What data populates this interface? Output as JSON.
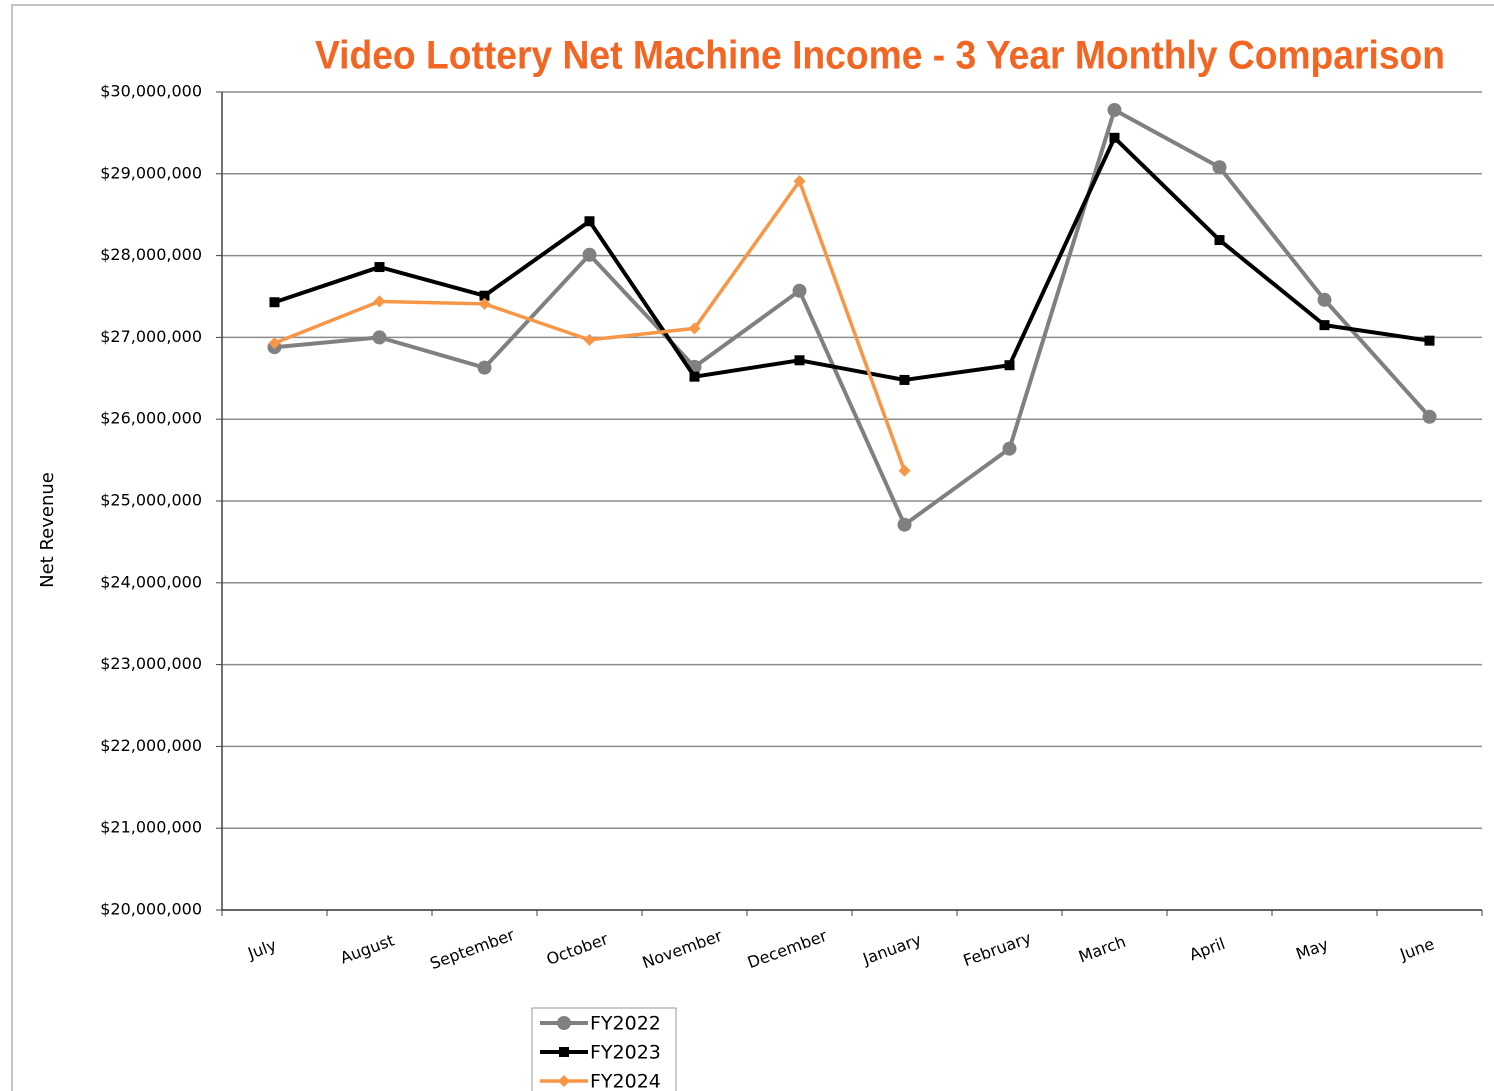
{
  "chart_data": {
    "type": "line",
    "title": "Video Lottery Net Machine Income - 3 Year Monthly Comparison",
    "y_label": "Net Revenue",
    "categories": [
      "July",
      "August",
      "September",
      "October",
      "November",
      "December",
      "January",
      "February",
      "March",
      "April",
      "May",
      "June"
    ],
    "series": [
      {
        "name": "FY2022",
        "color": "#808080",
        "marker": "circle",
        "values": [
          26880000,
          27000000,
          26630000,
          28010000,
          26640000,
          27570000,
          24710000,
          25640000,
          29780000,
          29080000,
          27460000,
          26030000
        ]
      },
      {
        "name": "FY2023",
        "color": "#000000",
        "marker": "square",
        "values": [
          27430000,
          27860000,
          27510000,
          28420000,
          26520000,
          26720000,
          26480000,
          26660000,
          29440000,
          28190000,
          27150000,
          26960000
        ]
      },
      {
        "name": "FY2024",
        "color": "#f79646",
        "marker": "diamond",
        "values": [
          26930000,
          27440000,
          27410000,
          26970000,
          27110000,
          28910000,
          25370000,
          null,
          null,
          null,
          null,
          null
        ]
      }
    ],
    "ylim": [
      20000000,
      30000000
    ],
    "yticks": [
      {
        "value": 20000000,
        "label": "$20,000,000"
      },
      {
        "value": 21000000,
        "label": "$21,000,000"
      },
      {
        "value": 22000000,
        "label": "$22,000,000"
      },
      {
        "value": 23000000,
        "label": "$23,000,000"
      },
      {
        "value": 24000000,
        "label": "$24,000,000"
      },
      {
        "value": 25000000,
        "label": "$25,000,000"
      },
      {
        "value": 26000000,
        "label": "$26,000,000"
      },
      {
        "value": 27000000,
        "label": "$27,000,000"
      },
      {
        "value": 28000000,
        "label": "$28,000,000"
      },
      {
        "value": 29000000,
        "label": "$29,000,000"
      },
      {
        "value": 30000000,
        "label": "$30,000,000"
      }
    ],
    "grid": true,
    "legend": "bottom"
  }
}
